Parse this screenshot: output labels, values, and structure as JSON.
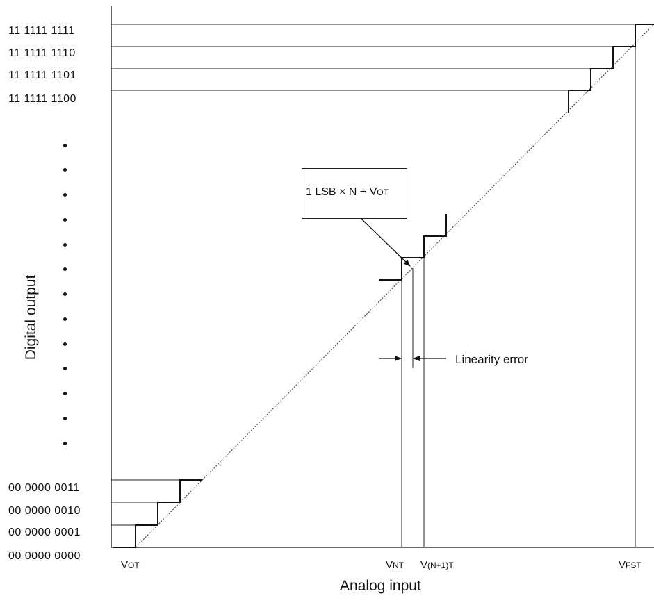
{
  "y_axis": {
    "title": "Digital output",
    "codes_top": [
      "11 1111 1111",
      "11 1111 1110",
      "11 1111 1101",
      "11 1111 1100"
    ],
    "codes_bottom": [
      "00 0000 0011",
      "00 0000 0010",
      "00 0000 0001",
      "00 0000 0000"
    ]
  },
  "x_axis": {
    "title": "Analog input",
    "labels": {
      "vot": {
        "main": "V",
        "sub": "OT"
      },
      "vnt": {
        "main": "V",
        "sub": "NT"
      },
      "vn1t": {
        "main": "V",
        "sub": "(N+1)T"
      },
      "vfst": {
        "main": "V",
        "sub": "FST"
      }
    }
  },
  "annotation_box": {
    "prefix": "1 LSB × N + V",
    "sub": "OT"
  },
  "linearity_label": "Linearity error"
}
